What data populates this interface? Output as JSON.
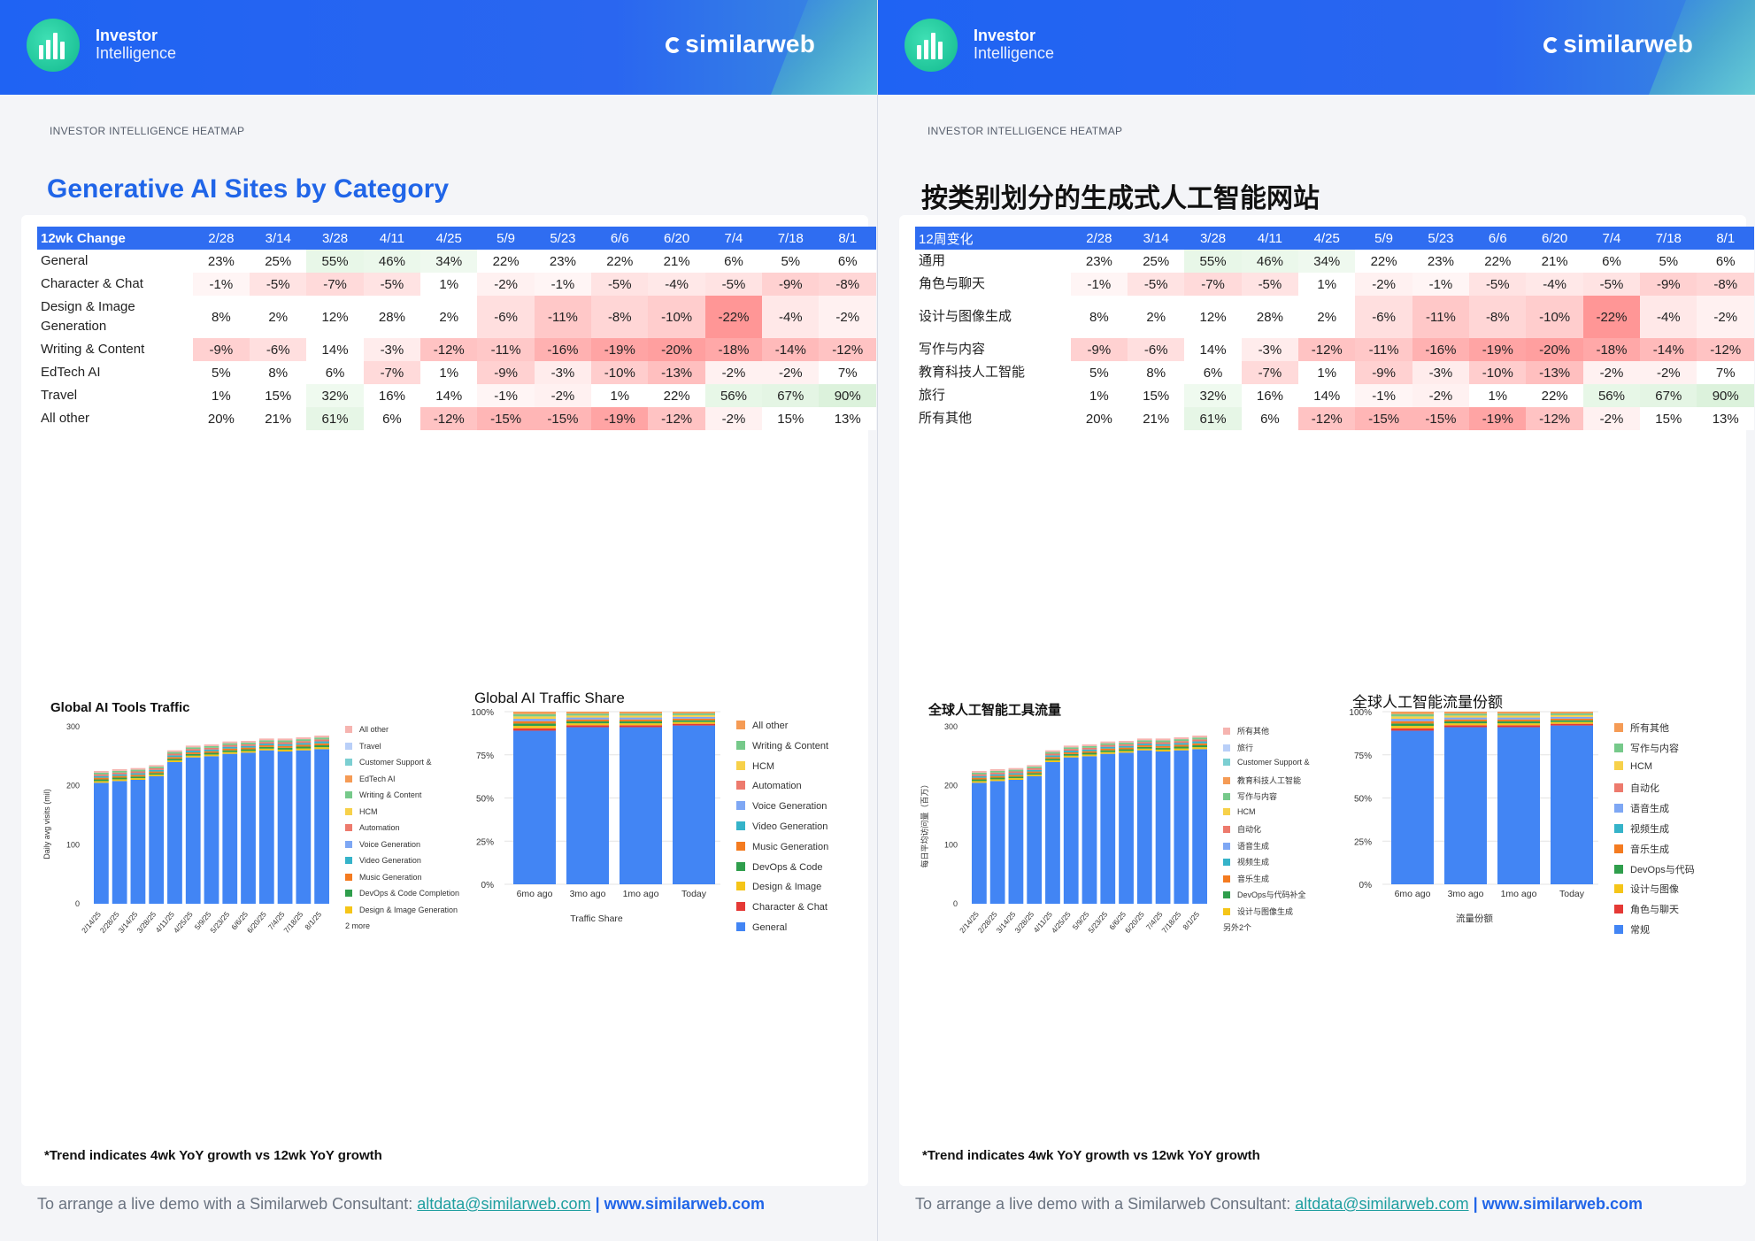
{
  "header": {
    "brand_line1": "Investor",
    "brand_line2": "Intelligence",
    "partner": "similarweb"
  },
  "colors": {
    "series": [
      "#f6b4b0",
      "#b9cff8",
      "#7ccfd2",
      "#f59b55",
      "#76c98a",
      "#f7d14a",
      "#ed7a6d",
      "#7ea7f4",
      "#35b3c9",
      "#f47b20",
      "#2f9e4c",
      "#f5c518",
      "#e53935",
      "#4285f4"
    ],
    "header_blue": "#2a66f0",
    "title_blue": "#2065e8"
  },
  "pages": [
    {
      "kicker": "INVESTOR INTELLIGENCE HEATMAP",
      "title": "Generative AI Sites by Category",
      "table": {
        "head": "12wk Change",
        "dates": [
          "2/28",
          "3/14",
          "3/28",
          "4/11",
          "4/25",
          "5/9",
          "5/23",
          "6/6",
          "6/20",
          "7/4",
          "7/18",
          "8/1"
        ],
        "rows": [
          {
            "label": "General",
            "values": [
              "23%",
              "25%",
              "55%",
              "46%",
              "34%",
              "22%",
              "23%",
              "22%",
              "21%",
              "6%",
              "5%",
              "6%"
            ]
          },
          {
            "label": "Character & Chat",
            "values": [
              "-1%",
              "-5%",
              "-7%",
              "-5%",
              "1%",
              "-2%",
              "-1%",
              "-5%",
              "-4%",
              "-5%",
              "-9%",
              "-8%"
            ]
          },
          {
            "label": "Design & Image Generation",
            "values": [
              "8%",
              "2%",
              "12%",
              "28%",
              "2%",
              "-6%",
              "-11%",
              "-8%",
              "-10%",
              "-22%",
              "-4%",
              "-2%"
            ]
          },
          {
            "label": "Writing & Content",
            "values": [
              "-9%",
              "-6%",
              "14%",
              "-3%",
              "-12%",
              "-11%",
              "-16%",
              "-19%",
              "-20%",
              "-18%",
              "-14%",
              "-12%"
            ]
          },
          {
            "label": "EdTech AI",
            "values": [
              "5%",
              "8%",
              "6%",
              "-7%",
              "1%",
              "-9%",
              "-3%",
              "-10%",
              "-13%",
              "-2%",
              "-2%",
              "7%"
            ]
          },
          {
            "label": "Travel",
            "values": [
              "1%",
              "15%",
              "32%",
              "16%",
              "14%",
              "-1%",
              "-2%",
              "1%",
              "22%",
              "56%",
              "67%",
              "90%"
            ]
          },
          {
            "label": "All other",
            "values": [
              "20%",
              "21%",
              "61%",
              "6%",
              "-12%",
              "-15%",
              "-15%",
              "-19%",
              "-12%",
              "-2%",
              "15%",
              "13%"
            ]
          }
        ]
      },
      "traffic": {
        "title": "Global AI Tools Traffic",
        "ylabel": "Daily avg visits (mil)",
        "legend": [
          "All other",
          "Travel",
          "Customer Support &",
          "EdTech AI",
          "Writing & Content",
          "HCM",
          "Automation",
          "Voice Generation",
          "Video Generation",
          "Music Generation",
          "DevOps & Code Completion",
          "Design & Image Generation"
        ],
        "more": "2 more"
      },
      "share": {
        "title": "Global AI Traffic Share",
        "xlabel": "Traffic Share",
        "legend": [
          "All other",
          "Writing & Content",
          "HCM",
          "Automation",
          "Voice Generation",
          "Video Generation",
          "Music Generation",
          "DevOps & Code",
          "Design & Image",
          "Character & Chat",
          "General"
        ]
      },
      "footnote": "*Trend indicates 4wk YoY growth vs 12wk YoY growth",
      "footer": {
        "text": "To arrange a live demo with a Similarweb Consultant: ",
        "email": "altdata@similarweb.com",
        "sep": " | ",
        "site": "www.similarweb.com"
      }
    },
    {
      "kicker": "INVESTOR INTELLIGENCE HEATMAP",
      "title": "按类别划分的生成式人工智能网站",
      "table": {
        "head": "12周变化",
        "dates": [
          "2/28",
          "3/14",
          "3/28",
          "4/11",
          "4/25",
          "5/9",
          "5/23",
          "6/6",
          "6/20",
          "7/4",
          "7/18",
          "8/1"
        ],
        "rows": [
          {
            "label": "通用",
            "values": [
              "23%",
              "25%",
              "55%",
              "46%",
              "34%",
              "22%",
              "23%",
              "22%",
              "21%",
              "6%",
              "5%",
              "6%"
            ]
          },
          {
            "label": "角色与聊天",
            "values": [
              "-1%",
              "-5%",
              "-7%",
              "-5%",
              "1%",
              "-2%",
              "-1%",
              "-5%",
              "-4%",
              "-5%",
              "-9%",
              "-8%"
            ]
          },
          {
            "label": "设计与图像生成",
            "values": [
              "8%",
              "2%",
              "12%",
              "28%",
              "2%",
              "-6%",
              "-11%",
              "-8%",
              "-10%",
              "-22%",
              "-4%",
              "-2%"
            ]
          },
          {
            "label": "写作与内容",
            "values": [
              "-9%",
              "-6%",
              "14%",
              "-3%",
              "-12%",
              "-11%",
              "-16%",
              "-19%",
              "-20%",
              "-18%",
              "-14%",
              "-12%"
            ]
          },
          {
            "label": "教育科技人工智能",
            "values": [
              "5%",
              "8%",
              "6%",
              "-7%",
              "1%",
              "-9%",
              "-3%",
              "-10%",
              "-13%",
              "-2%",
              "-2%",
              "7%"
            ]
          },
          {
            "label": "旅行",
            "values": [
              "1%",
              "15%",
              "32%",
              "16%",
              "14%",
              "-1%",
              "-2%",
              "1%",
              "22%",
              "56%",
              "67%",
              "90%"
            ]
          },
          {
            "label": "所有其他",
            "values": [
              "20%",
              "21%",
              "61%",
              "6%",
              "-12%",
              "-15%",
              "-15%",
              "-19%",
              "-12%",
              "-2%",
              "15%",
              "13%"
            ]
          }
        ]
      },
      "traffic": {
        "title": "全球人工智能工具流量",
        "ylabel": "每日平均访问量（百万）",
        "legend": [
          "所有其他",
          "旅行",
          "Customer Support &",
          "教育科技人工智能",
          "写作与内容",
          "HCM",
          "自动化",
          "语音生成",
          "视频生成",
          "音乐生成",
          "DevOps与代码补全",
          "设计与图像生成"
        ],
        "more": "另外2个"
      },
      "share": {
        "title": "全球人工智能流量份额",
        "xlabel": "流量份额",
        "legend": [
          "所有其他",
          "写作与内容",
          "HCM",
          "自动化",
          "语音生成",
          "视频生成",
          "音乐生成",
          "DevOps与代码",
          "设计与图像",
          "角色与聊天",
          "常规"
        ]
      },
      "footnote": "*Trend indicates 4wk YoY growth vs 12wk YoY growth",
      "footer": {
        "text": "To arrange a live demo with a Similarweb Consultant: ",
        "email": "altdata@similarweb.com",
        "sep": " | ",
        "site": "www.similarweb.com"
      }
    }
  ],
  "chart_data": [
    {
      "type": "bar",
      "stacked": true,
      "categories": [
        "2/14/25",
        "2/28/25",
        "3/14/25",
        "3/28/25",
        "4/11/25",
        "4/25/25",
        "5/9/25",
        "5/23/25",
        "6/6/25",
        "6/20/25",
        "7/4/25",
        "7/18/25",
        "8/1/25"
      ],
      "ylim": [
        0,
        300
      ],
      "yticks": [
        0,
        100,
        200,
        300
      ],
      "totals": [
        225,
        228,
        230,
        235,
        260,
        268,
        270,
        275,
        276,
        280,
        280,
        282,
        285
      ],
      "general": [
        205,
        208,
        210,
        216,
        240,
        248,
        250,
        254,
        256,
        260,
        258,
        260,
        262
      ],
      "grid": false
    },
    {
      "type": "bar",
      "stacked": true,
      "categories": [
        "6mo ago",
        "3mo ago",
        "1mo ago",
        "Today"
      ],
      "ylim": [
        0,
        100
      ],
      "yticks": [
        "0%",
        "25%",
        "50%",
        "75%",
        "100%"
      ],
      "general_pct": [
        89,
        91,
        91,
        92
      ],
      "grid": true
    }
  ]
}
